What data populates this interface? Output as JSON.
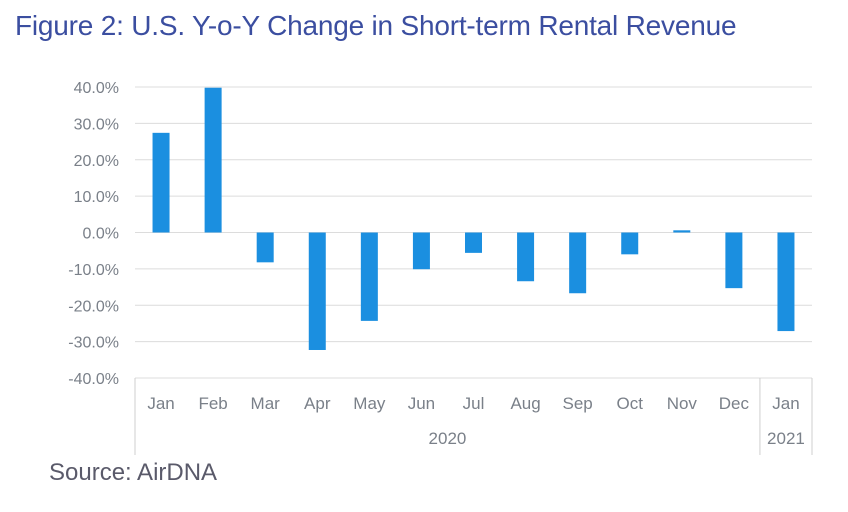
{
  "page": {
    "title": "Figure 2: U.S. Y-o-Y Change in Short-term Rental Revenue",
    "source": "Source: AirDNA"
  },
  "chart_data": {
    "type": "bar",
    "categories": [
      "Jan",
      "Feb",
      "Mar",
      "Apr",
      "May",
      "Jun",
      "Jul",
      "Aug",
      "Sep",
      "Oct",
      "Nov",
      "Dec",
      "Jan"
    ],
    "category_groups": [
      {
        "label": "2020",
        "count": 12
      },
      {
        "label": "2021",
        "count": 1
      }
    ],
    "values": [
      27.4,
      39.8,
      -8.2,
      -32.3,
      -24.3,
      -10.1,
      -5.6,
      -13.4,
      -16.7,
      -6.0,
      0.6,
      -15.3,
      -27.1
    ],
    "value_format": "percent_1dp",
    "ylim": [
      -40,
      40
    ],
    "yticks": [
      -40,
      -30,
      -20,
      -10,
      0,
      10,
      20,
      30,
      40
    ],
    "ytick_labels": [
      "-40.0%",
      "-30.0%",
      "-20.0%",
      "-10.0%",
      "0.0%",
      "10.0%",
      "20.0%",
      "30.0%",
      "40.0%"
    ],
    "grid": true,
    "legend": "none",
    "bar_color": "#1b8fe0",
    "title_color": "#3b4ea0"
  }
}
